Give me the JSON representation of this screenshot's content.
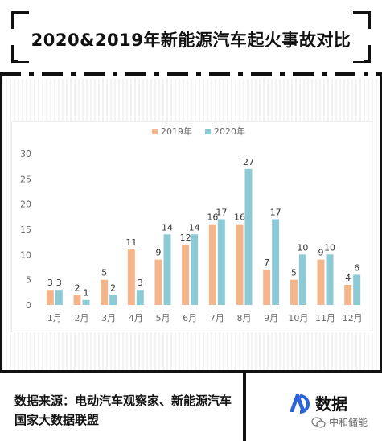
{
  "header": {
    "title": "2020&2019年新能源汽车起火事故对比"
  },
  "footer": {
    "source": "数据来源：电动汽车观察家、新能源汽车国家大数据联盟",
    "logo_text": "数据",
    "watermark": "中和储能",
    "logo_icon": "ad-logo-icon",
    "watermark_icon": "wechat-icon"
  },
  "colors": {
    "s2019": "#f5b58a",
    "s2020": "#8ccbd6",
    "axis_text": "#666666",
    "label_text": "#333333"
  },
  "chart_data": {
    "type": "bar",
    "categories": [
      "1月",
      "2月",
      "3月",
      "4月",
      "5月",
      "6月",
      "7月",
      "8月",
      "9月",
      "10月",
      "11月",
      "12月"
    ],
    "series": [
      {
        "name": "2019年",
        "values": [
          3,
          2,
          5,
          11,
          9,
          12,
          16,
          16,
          7,
          5,
          9,
          4
        ]
      },
      {
        "name": "2020年",
        "values": [
          3,
          1,
          2,
          3,
          14,
          14,
          17,
          27,
          17,
          10,
          10,
          6
        ]
      }
    ],
    "ylim": [
      0,
      30
    ],
    "yticks": [
      0,
      5,
      10,
      15,
      20,
      25,
      30
    ],
    "legend": "top-center",
    "grid": false
  }
}
